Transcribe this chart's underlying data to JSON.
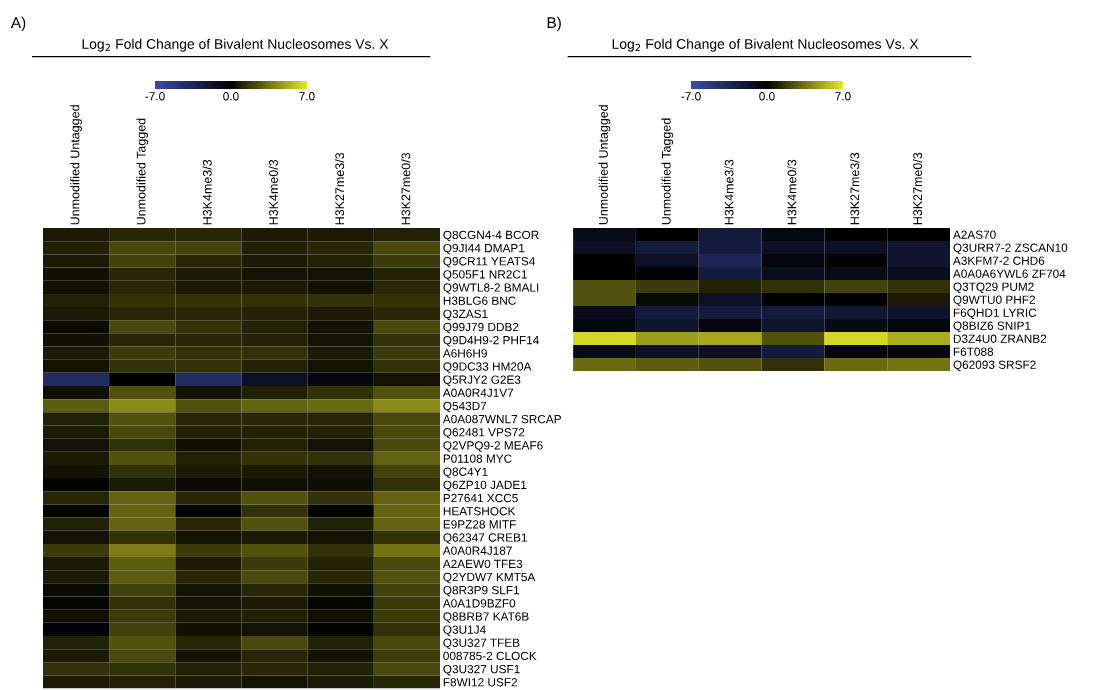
{
  "chart_data": [
    {
      "type": "heatmap",
      "title": "Log$_{2}$ Fold Change of Bivalent Nucleosomes Vs. X",
      "annotations": [
        "A)"
      ],
      "categories": [
        "Unmodified Untagged",
        "Unmodified Tagged",
        "H3K4me3/3",
        "H3K4me0/3",
        "H3K27me3/3",
        "H3K27me0/3"
      ],
      "y_categories": [
        "Q8CGN4-4 BCOR",
        "Q9JI44 DMAP1",
        "Q9CR11 YEATS4",
        "Q505F1 NR2C1",
        "Q9WTL8-2 BMALI",
        "H3BLG6 BNC",
        "Q3ZAS1",
        "Q99J79 DDB2",
        "Q9D4H9-2 PHF14",
        "A6H6H9",
        "Q9DC33 HM20A",
        "Q5RJY2 G2E3",
        "A0A0R4J1V7",
        "Q543D7",
        "A0A087WNL7 SRCAP",
        "Q62481 VPS72",
        "Q2VPQ9-2 MEAF6",
        "P01108 MYC",
        "Q8C4Y1",
        "Q6ZP10 JADE1",
        "P27641 XCC5",
        "HEATSHOCK",
        "E9PZ28 MITF",
        "Q62347 CREB1",
        "A0A0R4J187",
        "A2AEW0 TFE3",
        "Q2YDW7 KMT5A",
        "Q8R3P9 SLF1",
        "A0A1D9BZF0",
        "Q8BRB7 KAT6B",
        "Q3U1J4",
        "Q3U327 TFEB",
        "008785-2 CLOCK",
        "Q3U327 USF1",
        "F8WI12 USF2"
      ],
      "cells": [
        [
          0.8,
          1.2,
          1.2,
          0.8,
          0.8,
          1.0
        ],
        [
          1.0,
          2.2,
          2.0,
          1.0,
          1.2,
          2.2
        ],
        [
          0.8,
          2.0,
          1.2,
          0.8,
          1.0,
          1.8
        ],
        [
          0.5,
          1.2,
          0.8,
          0.6,
          0.6,
          1.0
        ],
        [
          0.5,
          1.2,
          0.8,
          0.8,
          0.5,
          1.2
        ],
        [
          1.0,
          1.5,
          1.5,
          1.5,
          1.5,
          1.5
        ],
        [
          0.8,
          1.2,
          1.2,
          1.0,
          0.8,
          1.2
        ],
        [
          0.3,
          2.2,
          1.5,
          1.0,
          0.6,
          2.2
        ],
        [
          0.5,
          1.2,
          1.2,
          1.0,
          0.6,
          1.5
        ],
        [
          0.8,
          1.8,
          1.5,
          1.5,
          0.8,
          1.8
        ],
        [
          0.6,
          1.5,
          1.5,
          1.0,
          0.6,
          1.5
        ],
        [
          -4.0,
          0.0,
          -4.0,
          -1.5,
          -0.6,
          0.6
        ],
        [
          0.5,
          2.5,
          0.6,
          1.0,
          1.5,
          2.5
        ],
        [
          2.8,
          4.2,
          2.5,
          3.0,
          3.2,
          4.2
        ],
        [
          1.0,
          2.5,
          1.2,
          1.2,
          1.2,
          2.2
        ],
        [
          0.8,
          2.2,
          1.0,
          1.0,
          1.0,
          2.2
        ],
        [
          0.6,
          1.5,
          0.5,
          1.0,
          0.6,
          2.2
        ],
        [
          0.8,
          2.5,
          1.0,
          1.5,
          1.5,
          3.0
        ],
        [
          0.6,
          1.5,
          0.8,
          0.8,
          0.6,
          2.0
        ],
        [
          0.1,
          0.8,
          0.3,
          0.5,
          0.4,
          1.5
        ],
        [
          1.2,
          3.0,
          1.2,
          2.5,
          1.5,
          3.0
        ],
        [
          0.1,
          3.0,
          0.1,
          1.5,
          0.1,
          3.0
        ],
        [
          1.0,
          3.0,
          1.2,
          2.5,
          1.0,
          3.0
        ],
        [
          0.6,
          1.5,
          0.6,
          0.8,
          0.6,
          1.5
        ],
        [
          1.8,
          3.8,
          1.8,
          2.5,
          1.5,
          3.5
        ],
        [
          0.8,
          2.8,
          0.8,
          1.8,
          1.0,
          2.2
        ],
        [
          0.8,
          2.8,
          1.2,
          2.2,
          1.2,
          2.5
        ],
        [
          0.3,
          2.0,
          0.6,
          1.2,
          0.5,
          2.0
        ],
        [
          0.2,
          1.5,
          0.6,
          0.8,
          0.2,
          1.8
        ],
        [
          0.5,
          1.8,
          0.8,
          1.0,
          0.5,
          1.8
        ],
        [
          -0.3,
          2.0,
          0.5,
          0.6,
          0.1,
          1.5
        ],
        [
          1.0,
          2.5,
          1.2,
          2.2,
          1.0,
          2.2
        ],
        [
          0.8,
          2.2,
          0.6,
          1.2,
          0.6,
          1.8
        ],
        [
          1.5,
          1.5,
          1.0,
          1.2,
          1.0,
          2.2
        ],
        [
          0.8,
          1.0,
          0.8,
          0.6,
          0.8,
          1.2
        ]
      ],
      "clim": [
        -7,
        7
      ],
      "cticks": [
        {
          "value": -7,
          "label": "-7.0"
        },
        {
          "value": 0,
          "label": "0.0"
        },
        {
          "value": 7,
          "label": "7.0"
        }
      ]
    },
    {
      "type": "heatmap",
      "title": "Log$_{2}$ Fold Change of Bivalent Nucleosomes Vs. X",
      "annotations": [
        "B)"
      ],
      "categories": [
        "Unmodified Untagged",
        "Unmodified Tagged",
        "H3K4me3/3",
        "H3K4me0/3",
        "H3K27me3/3",
        "H3K27me0/3"
      ],
      "y_categories": [
        "A2AS70",
        "Q3URR7-2 ZSCAN10",
        "A3KFM7-2 CHD6",
        "A0A0A6YWL6 ZF704",
        "Q3TQ29 PUM2",
        "Q9WTU0 PHF2",
        "F6QHD1 LYRIC",
        "Q8BIZ6 SNIP1",
        "D3Z4U0 ZRANB2",
        "F6T088",
        "Q62093 SRSF2"
      ],
      "cells": [
        [
          -1.0,
          -0.1,
          -2.5,
          -0.8,
          -0.1,
          -0.1
        ],
        [
          -1.5,
          -2.5,
          -2.5,
          -1.5,
          -1.5,
          -2.0
        ],
        [
          -0.1,
          -1.5,
          -3.5,
          -0.6,
          -0.3,
          -2.0
        ],
        [
          -0.1,
          -0.3,
          -2.5,
          -1.2,
          -1.0,
          -1.2
        ],
        [
          2.5,
          1.8,
          1.0,
          1.5,
          2.0,
          1.5
        ],
        [
          2.5,
          0.3,
          -1.5,
          -0.1,
          -0.1,
          0.8
        ],
        [
          -1.2,
          -2.5,
          -2.5,
          -2.5,
          -2.2,
          -1.8
        ],
        [
          -0.5,
          -2.0,
          -0.6,
          -2.0,
          -0.8,
          -0.5
        ],
        [
          6.5,
          4.8,
          5.0,
          2.5,
          6.5,
          5.2
        ],
        [
          -1.0,
          -1.5,
          -1.5,
          -2.5,
          -0.6,
          -0.6
        ],
        [
          3.2,
          2.8,
          2.5,
          1.5,
          3.2,
          3.5
        ]
      ],
      "clim": [
        -7,
        7
      ],
      "cticks": [
        {
          "value": -7,
          "label": "-7.0"
        },
        {
          "value": 0,
          "label": "0.0"
        },
        {
          "value": 7,
          "label": "7.0"
        }
      ]
    }
  ]
}
